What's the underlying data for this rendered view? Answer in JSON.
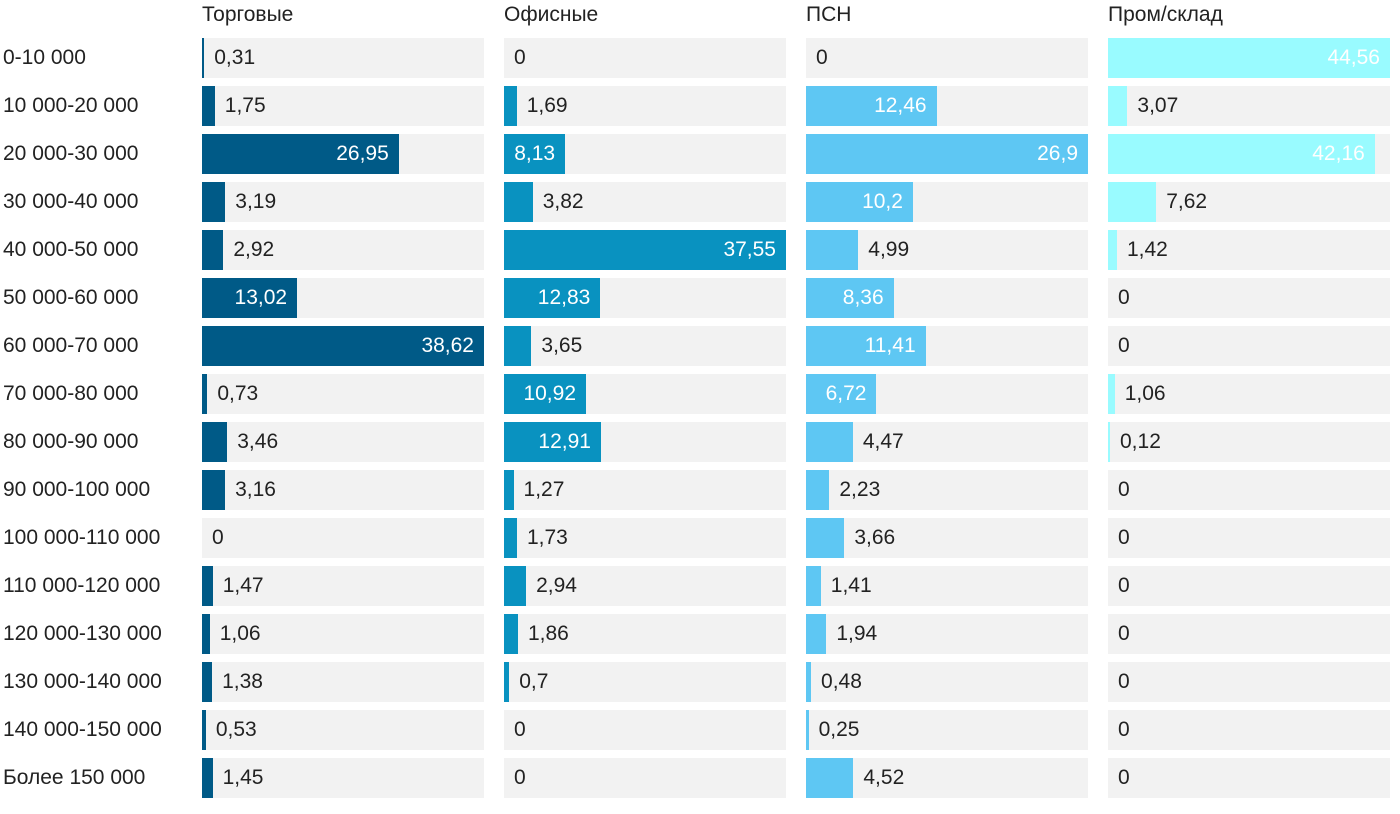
{
  "chart_data": {
    "type": "bar",
    "orientation": "horizontal",
    "layout": "small-multiples",
    "categories": [
      "0-10 000",
      "10 000-20 000",
      "20 000-30 000",
      "30 000-40 000",
      "40 000-50 000",
      "50 000-60 000",
      "60 000-70 000",
      "70 000-80 000",
      "80 000-90 000",
      "90 000-100 000",
      "100 000-110 000",
      "110 000-120 000",
      "120 000-130 000",
      "130 000-140 000",
      "140 000-150 000",
      "Более 150 000"
    ],
    "series": [
      {
        "name": "Торговые",
        "color": "#005a87",
        "max": 38.62,
        "values": [
          0.31,
          1.75,
          26.95,
          3.19,
          2.92,
          13.02,
          38.62,
          0.73,
          3.46,
          3.16,
          0,
          1.47,
          1.06,
          1.38,
          0.53,
          1.45
        ],
        "labels": [
          "0,31",
          "1,75",
          "26,95",
          "3,19",
          "2,92",
          "13,02",
          "38,62",
          "0,73",
          "3,46",
          "3,16",
          "0",
          "1,47",
          "1,06",
          "1,38",
          "0,53",
          "1,45"
        ]
      },
      {
        "name": "Офисные",
        "color": "#0992c0",
        "max": 37.55,
        "values": [
          0,
          1.69,
          8.13,
          3.82,
          37.55,
          12.83,
          3.65,
          10.92,
          12.91,
          1.27,
          1.73,
          2.94,
          1.86,
          0.7,
          0,
          0
        ],
        "labels": [
          "0",
          "1,69",
          "8,13",
          "3,82",
          "37,55",
          "12,83",
          "3,65",
          "10,92",
          "12,91",
          "1,27",
          "1,73",
          "2,94",
          "1,86",
          "0,7",
          "0",
          "0"
        ]
      },
      {
        "name": "ПСН",
        "color": "#5ec7f3",
        "max": 26.9,
        "values": [
          0,
          12.46,
          26.9,
          10.2,
          4.99,
          8.36,
          11.41,
          6.72,
          4.47,
          2.23,
          3.66,
          1.41,
          1.94,
          0.48,
          0.25,
          4.52
        ],
        "labels": [
          "0",
          "12,46",
          "26,9",
          "10,2",
          "4,99",
          "8,36",
          "11,41",
          "6,72",
          "4,47",
          "2,23",
          "3,66",
          "1,41",
          "1,94",
          "0,48",
          "0,25",
          "4,52"
        ]
      },
      {
        "name": "Пром/склад",
        "color": "#99fbff",
        "max": 44.56,
        "values": [
          44.56,
          3.07,
          42.16,
          7.62,
          1.42,
          0,
          0,
          1.06,
          0.12,
          0,
          0,
          0,
          0,
          0,
          0,
          0
        ],
        "labels": [
          "44,56",
          "3,07",
          "42,16",
          "7,62",
          "1,42",
          "0",
          "0",
          "1,06",
          "0,12",
          "0",
          "0",
          "0",
          "0",
          "0",
          "0",
          "0"
        ]
      }
    ],
    "track_color": "#f2f2f2",
    "label_color_inside": "#ffffff",
    "label_color_outside": "#222222"
  }
}
